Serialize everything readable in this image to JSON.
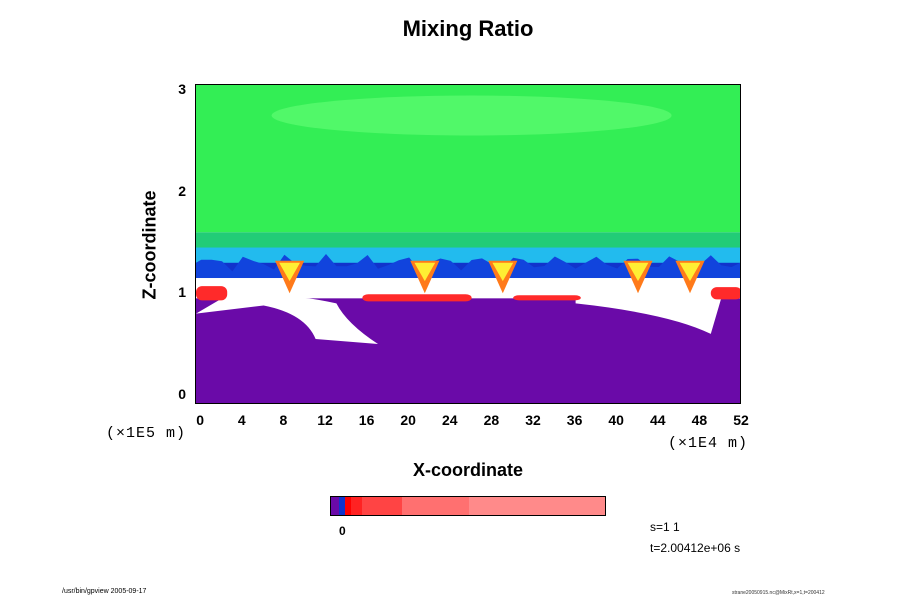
{
  "chart_data": {
    "type": "heatmap",
    "title": "Mixing Ratio",
    "xlabel": "X-coordinate",
    "ylabel": "Z-coordinate",
    "x_scale_label": "(×1E4 m)",
    "y_scale_label": "(×1E5 m)",
    "xlim": [
      -0.5,
      52
    ],
    "ylim": [
      -0.1,
      3.05
    ],
    "x_ticks": [
      "0",
      "4",
      "8",
      "12",
      "16",
      "20",
      "24",
      "28",
      "32",
      "36",
      "40",
      "44",
      "48",
      "52"
    ],
    "x_tick_values": [
      0,
      4,
      8,
      12,
      16,
      20,
      24,
      28,
      32,
      36,
      40,
      44,
      48,
      52
    ],
    "y_ticks": [
      "0",
      "1",
      "2",
      "3"
    ],
    "y_tick_values": [
      0,
      1,
      2,
      3
    ],
    "layers": [
      {
        "name": "upper",
        "z_range": [
          1.6,
          3.05
        ],
        "color": "#33ee55"
      },
      {
        "name": "transition",
        "z_range": [
          1.35,
          1.6
        ],
        "color": "#22cc77"
      },
      {
        "name": "cyan band",
        "z_range": [
          1.28,
          1.45
        ],
        "color": "#22bbee"
      },
      {
        "name": "blue band",
        "z_range": [
          1.15,
          1.3
        ],
        "color": "#1133cc"
      },
      {
        "name": "lower",
        "z_range": [
          -0.1,
          0.95
        ],
        "color": "#6a0aa8"
      }
    ],
    "plumes_x": [
      8.5,
      21.5,
      29,
      42,
      47
    ],
    "red_patches": [
      {
        "x": [
          -0.5,
          2.5
        ],
        "z": [
          0.93,
          1.07
        ]
      },
      {
        "x": [
          15.5,
          26
        ],
        "z": [
          0.92,
          0.99
        ]
      },
      {
        "x": [
          30,
          36.5
        ],
        "z": [
          0.93,
          0.98
        ]
      },
      {
        "x": [
          49,
          52
        ],
        "z": [
          0.94,
          1.06
        ]
      }
    ],
    "colorbar": {
      "label": "0",
      "colors": [
        "#6a0aa8",
        "#1133cc",
        "#ff0000",
        "#ff2222",
        "#ff4444",
        "#ff7070",
        "#ff8a8a",
        "#ff9a9a"
      ],
      "widths": [
        3,
        2,
        2,
        4,
        14,
        24,
        48
      ]
    }
  },
  "info": {
    "s_line": "s=1 1",
    "t_line": "t=2.00412e+06 s"
  },
  "footer": {
    "left": "/usr/bin/gpview  2005-09-17",
    "right": "strane20050915.nc@MixRt,x=1,t=200412"
  }
}
